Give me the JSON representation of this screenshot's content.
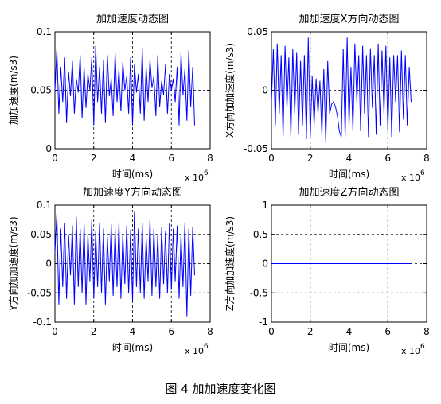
{
  "figure": {
    "caption": "图 4  加加速度变化图"
  },
  "chart_data": [
    {
      "type": "line",
      "title": "加加速度动态图",
      "xlabel": "时间(ms)",
      "ylabel": "加加速度(m/s3)",
      "x_exponent": "x 10",
      "x_exponent_power": "6",
      "xlim": [
        0,
        8
      ],
      "ylim": [
        0,
        0.1
      ],
      "xticks": [
        "0",
        "2",
        "4",
        "6",
        "8"
      ],
      "yticks": [
        "0",
        "0.05",
        "0.1"
      ],
      "xtick_values": [
        0,
        2,
        4,
        6,
        8
      ],
      "ytick_values": [
        0,
        0.05,
        0.1
      ],
      "grid": true,
      "series_color": "#0000ff",
      "x": [
        0.0,
        0.1,
        0.2,
        0.3,
        0.4,
        0.5,
        0.6,
        0.7,
        0.8,
        0.9,
        1.0,
        1.1,
        1.2,
        1.3,
        1.4,
        1.5,
        1.6,
        1.7,
        1.8,
        1.9,
        2.0,
        2.1,
        2.2,
        2.3,
        2.4,
        2.5,
        2.6,
        2.7,
        2.8,
        2.9,
        3.0,
        3.1,
        3.2,
        3.3,
        3.4,
        3.5,
        3.6,
        3.7,
        3.8,
        3.9,
        4.0,
        4.1,
        4.2,
        4.3,
        4.4,
        4.5,
        4.6,
        4.7,
        4.8,
        4.9,
        5.0,
        5.1,
        5.2,
        5.3,
        5.4,
        5.5,
        5.6,
        5.7,
        5.8,
        5.9,
        6.0,
        6.1,
        6.2,
        6.3,
        6.4,
        6.5,
        6.6,
        6.7,
        6.8,
        6.9,
        7.0,
        7.1,
        7.2
      ],
      "values": [
        0.05,
        0.085,
        0.03,
        0.07,
        0.04,
        0.078,
        0.022,
        0.066,
        0.045,
        0.075,
        0.03,
        0.06,
        0.048,
        0.08,
        0.026,
        0.07,
        0.035,
        0.064,
        0.05,
        0.078,
        0.02,
        0.088,
        0.04,
        0.07,
        0.03,
        0.076,
        0.022,
        0.08,
        0.045,
        0.06,
        0.028,
        0.082,
        0.04,
        0.068,
        0.032,
        0.074,
        0.05,
        0.062,
        0.03,
        0.078,
        0.02,
        0.072,
        0.048,
        0.064,
        0.03,
        0.086,
        0.024,
        0.07,
        0.04,
        0.076,
        0.052,
        0.062,
        0.028,
        0.08,
        0.036,
        0.058,
        0.046,
        0.072,
        0.03,
        0.064,
        0.05,
        0.06,
        0.04,
        0.07,
        0.02,
        0.082,
        0.046,
        0.068,
        0.024,
        0.084,
        0.036,
        0.07,
        0.02
      ]
    },
    {
      "type": "line",
      "title": "加加速度X方向动态图",
      "xlabel": "时间(ms)",
      "ylabel": "X方向加加速度(m/s3)",
      "x_exponent": "x 10",
      "x_exponent_power": "6",
      "xlim": [
        0,
        8
      ],
      "ylim": [
        -0.05,
        0.05
      ],
      "xticks": [
        "0",
        "2",
        "4",
        "6",
        "8"
      ],
      "yticks": [
        "-0.05",
        "0",
        "0.05"
      ],
      "xtick_values": [
        0,
        2,
        4,
        6,
        8
      ],
      "ytick_values": [
        -0.05,
        0,
        0.05
      ],
      "grid": true,
      "series_color": "#0000ff",
      "x": [
        0.0,
        0.1,
        0.2,
        0.3,
        0.4,
        0.5,
        0.6,
        0.7,
        0.8,
        0.9,
        1.0,
        1.1,
        1.2,
        1.3,
        1.4,
        1.5,
        1.6,
        1.7,
        1.8,
        1.9,
        2.0,
        2.1,
        2.2,
        2.3,
        2.4,
        2.5,
        2.6,
        2.7,
        2.8,
        2.9,
        3.0,
        3.1,
        3.2,
        3.3,
        3.4,
        3.5,
        3.6,
        3.7,
        3.8,
        3.9,
        4.0,
        4.1,
        4.2,
        4.3,
        4.4,
        4.5,
        4.6,
        4.7,
        4.8,
        4.9,
        5.0,
        5.1,
        5.2,
        5.3,
        5.4,
        5.5,
        5.6,
        5.7,
        5.8,
        5.9,
        6.0,
        6.1,
        6.2,
        6.3,
        6.4,
        6.5,
        6.6,
        6.7,
        6.8,
        6.9,
        7.0,
        7.1,
        7.2
      ],
      "values": [
        -0.01,
        0.035,
        -0.03,
        0.04,
        -0.02,
        0.03,
        -0.04,
        0.038,
        -0.015,
        0.028,
        -0.04,
        0.035,
        -0.02,
        0.032,
        -0.038,
        0.025,
        -0.03,
        0.03,
        -0.042,
        0.045,
        -0.04,
        0.012,
        -0.03,
        0.01,
        -0.02,
        0.008,
        -0.038,
        0.018,
        -0.045,
        0.025,
        -0.02,
        -0.012,
        -0.01,
        -0.014,
        -0.022,
        -0.035,
        -0.04,
        0.035,
        -0.04,
        0.045,
        -0.03,
        0.02,
        -0.035,
        0.04,
        -0.01,
        0.03,
        -0.035,
        0.038,
        -0.02,
        0.03,
        -0.04,
        0.036,
        -0.015,
        0.03,
        -0.038,
        0.04,
        -0.03,
        0.034,
        -0.02,
        0.038,
        -0.035,
        0.028,
        -0.04,
        0.03,
        -0.01,
        0.03,
        -0.036,
        0.034,
        -0.025,
        0.03,
        -0.03,
        0.02,
        -0.01
      ]
    },
    {
      "type": "line",
      "title": "加加速度Y方向动态图",
      "xlabel": "时间(ms)",
      "ylabel": "Y方向加加速度(m/s3)",
      "x_exponent": "x 10",
      "x_exponent_power": "6",
      "xlim": [
        0,
        8
      ],
      "ylim": [
        -0.1,
        0.1
      ],
      "xticks": [
        "0",
        "2",
        "4",
        "6",
        "8"
      ],
      "yticks": [
        "-0.1",
        "-0.05",
        "0",
        "0.05",
        "0.1"
      ],
      "xtick_values": [
        0,
        2,
        4,
        6,
        8
      ],
      "ytick_values": [
        -0.1,
        -0.05,
        0,
        0.05,
        0.1
      ],
      "grid": true,
      "series_color": "#0000ff",
      "x": [
        0.0,
        0.1,
        0.2,
        0.3,
        0.4,
        0.5,
        0.6,
        0.7,
        0.8,
        0.9,
        1.0,
        1.1,
        1.2,
        1.3,
        1.4,
        1.5,
        1.6,
        1.7,
        1.8,
        1.9,
        2.0,
        2.1,
        2.2,
        2.3,
        2.4,
        2.5,
        2.6,
        2.7,
        2.8,
        2.9,
        3.0,
        3.1,
        3.2,
        3.3,
        3.4,
        3.5,
        3.6,
        3.7,
        3.8,
        3.9,
        4.0,
        4.1,
        4.2,
        4.3,
        4.4,
        4.5,
        4.6,
        4.7,
        4.8,
        4.9,
        5.0,
        5.1,
        5.2,
        5.3,
        5.4,
        5.5,
        5.6,
        5.7,
        5.8,
        5.9,
        6.0,
        6.1,
        6.2,
        6.3,
        6.4,
        6.5,
        6.6,
        6.7,
        6.8,
        6.9,
        7.0,
        7.1,
        7.2
      ],
      "values": [
        0.02,
        0.085,
        -0.07,
        0.06,
        -0.04,
        0.07,
        -0.06,
        0.05,
        -0.02,
        0.065,
        -0.07,
        0.08,
        -0.04,
        0.06,
        -0.05,
        0.07,
        -0.07,
        0.05,
        -0.03,
        0.075,
        -0.06,
        0.055,
        -0.04,
        0.07,
        -0.05,
        0.06,
        -0.07,
        0.045,
        -0.03,
        0.068,
        -0.055,
        0.06,
        -0.04,
        0.07,
        -0.06,
        0.05,
        -0.035,
        0.065,
        -0.05,
        0.058,
        -0.065,
        0.09,
        -0.04,
        0.06,
        -0.05,
        0.07,
        -0.06,
        0.045,
        -0.03,
        0.075,
        -0.055,
        0.06,
        -0.04,
        0.05,
        -0.06,
        0.062,
        -0.035,
        0.055,
        -0.05,
        0.07,
        -0.045,
        0.06,
        -0.03,
        0.065,
        -0.06,
        0.05,
        -0.04,
        0.07,
        -0.09,
        0.06,
        -0.055,
        0.062,
        -0.02
      ]
    },
    {
      "type": "line",
      "title": "加加速度Z方向动态图",
      "xlabel": "时间(ms)",
      "ylabel": "Z方向加加速度(m/s3)",
      "x_exponent": "x 10",
      "x_exponent_power": "6",
      "xlim": [
        0,
        8
      ],
      "ylim": [
        -1,
        1
      ],
      "xticks": [
        "0",
        "2",
        "4",
        "6",
        "8"
      ],
      "yticks": [
        "-1",
        "-0.5",
        "0",
        "0.5",
        "1"
      ],
      "xtick_values": [
        0,
        2,
        4,
        6,
        8
      ],
      "ytick_values": [
        -1,
        -0.5,
        0,
        0.5,
        1
      ],
      "grid": true,
      "series_color": "#0000ff",
      "x": [
        0,
        7.2
      ],
      "values": [
        0,
        0
      ]
    }
  ]
}
